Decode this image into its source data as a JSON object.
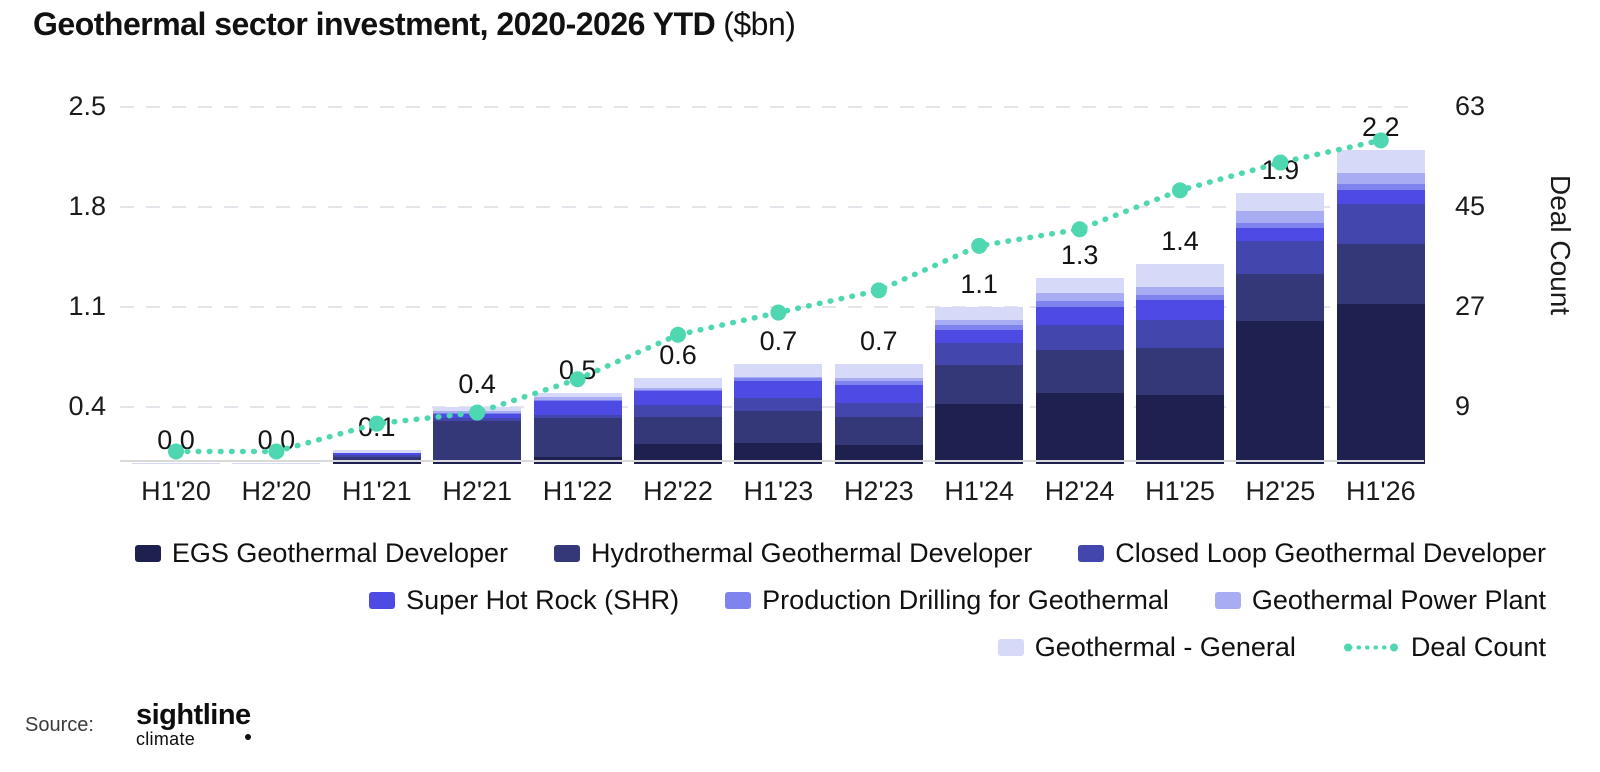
{
  "title": {
    "main": "Geothermal sector investment, 2020-2026 YTD",
    "suffix": "($bn)"
  },
  "chart_data": {
    "type": "stacked-bar-with-line",
    "unit": "$bn",
    "categories": [
      "H1'20",
      "H2'20",
      "H1'21",
      "H2'21",
      "H1'22",
      "H2'22",
      "H1'23",
      "H2'23",
      "H1'24",
      "H2'24",
      "H1'25",
      "H2'25",
      "H1'26"
    ],
    "series": [
      {
        "name": "EGS Geothermal Developer",
        "color": "#1e2150",
        "values": [
          0.0,
          0.0,
          0.02,
          0.03,
          0.05,
          0.14,
          0.15,
          0.13,
          0.42,
          0.5,
          0.48,
          1.0,
          1.12
        ]
      },
      {
        "name": "Hydrothermal Geothermal Developer",
        "color": "#343879",
        "values": [
          0.004,
          0.004,
          0.03,
          0.27,
          0.27,
          0.19,
          0.22,
          0.2,
          0.27,
          0.3,
          0.33,
          0.33,
          0.42
        ]
      },
      {
        "name": "Closed Loop Geothermal Developer",
        "color": "#4347ad",
        "values": [
          0.0,
          0.0,
          0.01,
          0.02,
          0.02,
          0.08,
          0.09,
          0.1,
          0.16,
          0.17,
          0.2,
          0.23,
          0.28
        ]
      },
      {
        "name": "Super Hot Rock (SHR)",
        "color": "#4d4be4",
        "values": [
          0.0,
          0.0,
          0.02,
          0.03,
          0.1,
          0.1,
          0.12,
          0.12,
          0.09,
          0.13,
          0.14,
          0.09,
          0.1
        ]
      },
      {
        "name": "Production Drilling for Geothermal",
        "color": "#7e83ee",
        "values": [
          0.0,
          0.0,
          0.0,
          0.01,
          0.01,
          0.01,
          0.02,
          0.03,
          0.03,
          0.04,
          0.03,
          0.04,
          0.04
        ]
      },
      {
        "name": "Geothermal Power Plant",
        "color": "#a8acf2",
        "values": [
          0.0,
          0.0,
          0.0,
          0.01,
          0.02,
          0.01,
          0.01,
          0.02,
          0.04,
          0.06,
          0.06,
          0.08,
          0.08
        ]
      },
      {
        "name": "Geothermal - General",
        "color": "#d7d9f8",
        "values": [
          0.006,
          0.006,
          0.02,
          0.03,
          0.03,
          0.07,
          0.09,
          0.1,
          0.09,
          0.1,
          0.16,
          0.13,
          0.16
        ]
      }
    ],
    "totals_labels": [
      "0.0",
      "0.0",
      "0.1",
      "0.4",
      "0.5",
      "0.6",
      "0.7",
      "0.7",
      "1.1",
      "1.3",
      "1.4",
      "1.9",
      "2.2"
    ],
    "line": {
      "name": "Deal Count",
      "color": "#4ed7b0",
      "values": [
        1,
        1,
        6,
        8,
        14,
        22,
        26,
        30,
        38,
        41,
        48,
        53,
        57
      ]
    },
    "left_axis": {
      "labels": [
        "0.4",
        "1.1",
        "1.8",
        "2.5"
      ],
      "ticks": [
        0.4,
        1.1,
        1.8,
        2.5
      ],
      "range": [
        0,
        2.6
      ]
    },
    "right_axis": {
      "title": "Deal Count",
      "labels": [
        "9",
        "27",
        "45",
        "63"
      ],
      "ticks": [
        9,
        27,
        45,
        63
      ]
    },
    "grid": "dashed-horizontal",
    "legend_position": "bottom-right"
  },
  "legend": {
    "rows": [
      [
        "s0",
        "s1",
        "s2"
      ],
      [
        "s3",
        "s4",
        "s5"
      ],
      [
        "s6",
        "line"
      ]
    ]
  },
  "source": {
    "label": "Source:",
    "logo_line1": "sightline",
    "logo_line2": "climate"
  }
}
